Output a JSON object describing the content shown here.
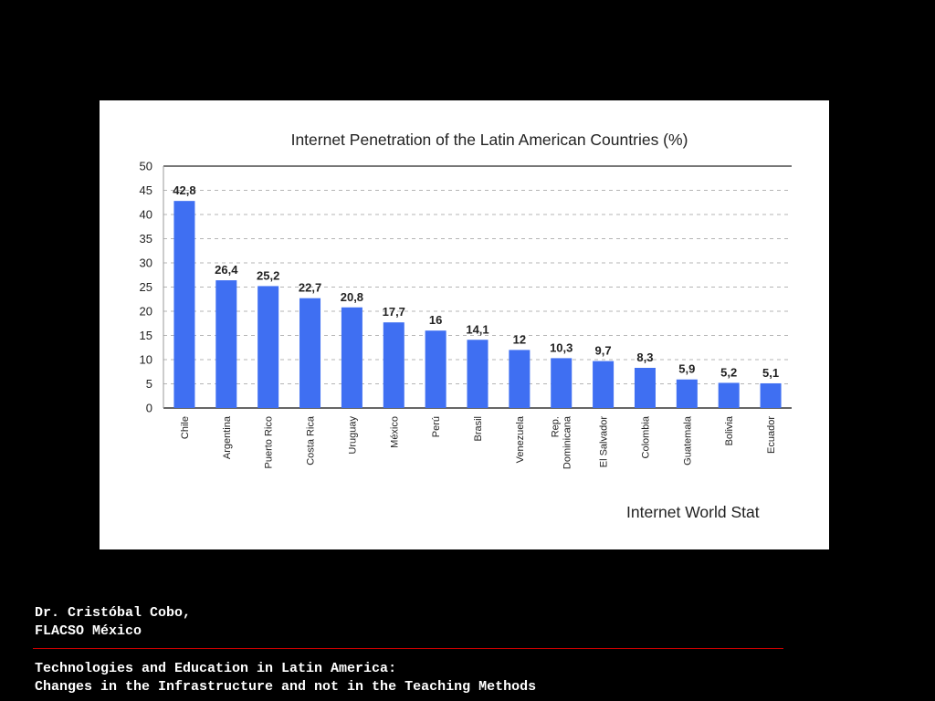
{
  "chart_data": {
    "type": "bar",
    "title": "Internet Penetration of the Latin American Countries (%)",
    "categories": [
      "Chile",
      "Argentina",
      "Puerto Rico",
      "Costa Rica",
      "Uruguay",
      "México",
      "Perú",
      "Brasil",
      "Venezuela",
      "Rep. Dominicana",
      "El Salvador",
      "Colombia",
      "Guatemala",
      "Bolivia",
      "Ecuador"
    ],
    "values": [
      42.8,
      26.4,
      25.2,
      22.7,
      20.8,
      17.7,
      16,
      14.1,
      12,
      10.3,
      9.7,
      8.3,
      5.9,
      5.2,
      5.1
    ],
    "value_labels": [
      "42,8",
      "26,4",
      "25,2",
      "22,7",
      "20,8",
      "17,7",
      "16",
      "14,1",
      "12",
      "10,3",
      "9,7",
      "8,3",
      "5,9",
      "5,2",
      "5,1"
    ],
    "yticks": [
      0,
      5,
      10,
      15,
      20,
      25,
      30,
      35,
      40,
      45,
      50
    ],
    "ylim": [
      0,
      50
    ],
    "grid": true,
    "bar_color": "#3f6ff2",
    "source": "Internet World Stat"
  },
  "footer": {
    "author_name": "Dr. Cristóbal Cobo,",
    "author_org": "FLACSO México",
    "talk_title_line1": "Technologies and Education in Latin America:",
    "talk_title_line2": "Changes in the Infrastructure and not in the Teaching Methods",
    "rule_color": "#cc0000"
  }
}
